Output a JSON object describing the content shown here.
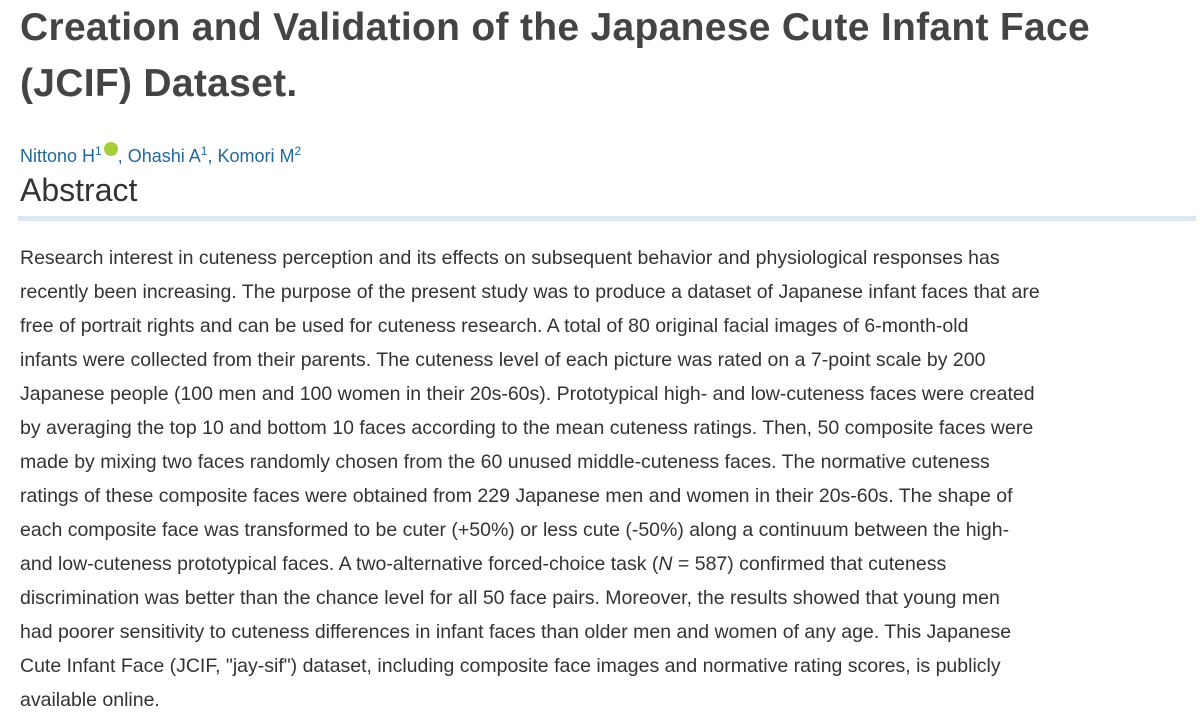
{
  "header": {
    "title": "Creation and Validation of the Japanese Cute Infant Face (JCIF) Dataset."
  },
  "authors": {
    "separator": ", ",
    "list": [
      {
        "name": "Nittono H",
        "affiliation": "1"
      },
      {
        "name": "Ohashi A",
        "affiliation": "1"
      },
      {
        "name": "Komori M",
        "affiliation": "2"
      }
    ]
  },
  "abstract": {
    "heading": "Abstract",
    "lines": [
      "Research interest in cuteness perception and its effects on subsequent behavior and physiological responses has",
      "recently been increasing. The purpose of the present study was to produce a dataset of Japanese infant faces that are",
      "free of portrait rights and can be used for cuteness research. A total of 80 original facial images of 6-month-old",
      "infants were collected from their parents. The cuteness level of each picture was rated on a 7-point scale by 200",
      "Japanese people (100 men and 100 women in their 20s-60s). Prototypical high- and low-cuteness faces were created",
      "by averaging the top 10 and bottom 10 faces according to the mean cuteness ratings. Then, 50 composite faces were",
      "made by mixing two faces randomly chosen from the 60 unused middle-cuteness faces. The normative cuteness",
      "ratings of these composite faces were obtained from 229 Japanese men and women in their 20s-60s. The shape of",
      "each composite face was transformed to be cuter (+50%) or less cute (-50%) along a continuum between the high-",
      {
        "before": "and low-cuteness prototypical faces. A two-alternative forced-choice task (",
        "italic": "N",
        "after": " = 587) confirmed that cuteness"
      },
      "discrimination was better than the chance level for all 50 face pairs. Moreover, the results showed that young men",
      "had poorer sensitivity to cuteness differences in infant faces than older men and women of any age. This Japanese",
      "Cute Infant Face (JCIF, \"jay-sif\") dataset, including composite face images and normative rating scores, is publicly",
      "available online."
    ]
  }
}
